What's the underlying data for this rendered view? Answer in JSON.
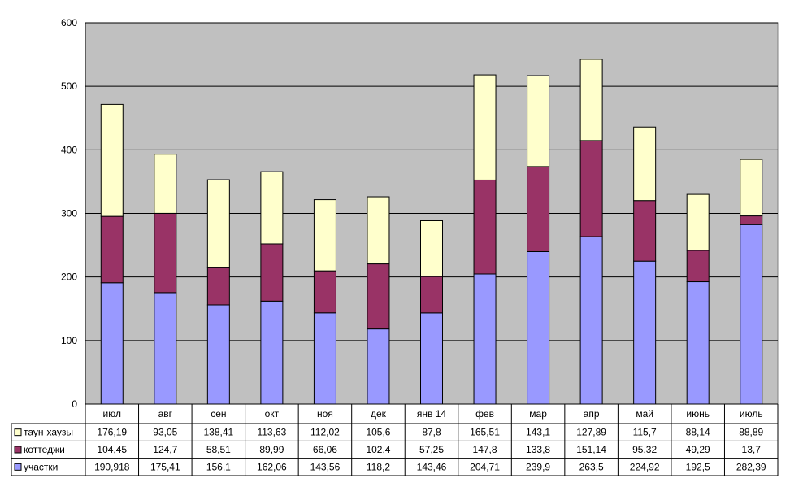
{
  "chart_data": {
    "type": "bar",
    "stacked": true,
    "title": "",
    "xlabel": "",
    "ylabel": "",
    "ylim": [
      0,
      600
    ],
    "yticks": [
      "0",
      "100",
      "200",
      "300",
      "400",
      "500",
      "600"
    ],
    "grid": true,
    "legend": "data-table-left",
    "categories": [
      "июл",
      "авг",
      "сен",
      "окт",
      "ноя",
      "дек",
      "янв 14",
      "фев",
      "мар",
      "апр",
      "май",
      "июнь",
      "июль"
    ],
    "series": [
      {
        "name": "участки",
        "color": "#9999ff",
        "values": [
          190.918,
          175.41,
          156.1,
          162.06,
          143.56,
          118.2,
          143.46,
          204.71,
          239.9,
          263.5,
          224.92,
          192.5,
          282.39
        ],
        "labels": [
          "190,918",
          "175,41",
          "156,1",
          "162,06",
          "143,56",
          "118,2",
          "143,46",
          "204,71",
          "239,9",
          "263,5",
          "224,92",
          "192,5",
          "282,39"
        ]
      },
      {
        "name": "коттеджи",
        "color": "#993366",
        "values": [
          104.45,
          124.7,
          58.51,
          89.99,
          66.06,
          102.4,
          57.25,
          147.8,
          133.8,
          151.14,
          95.32,
          49.29,
          13.7
        ],
        "labels": [
          "104,45",
          "124,7",
          "58,51",
          "89,99",
          "66,06",
          "102,4",
          "57,25",
          "147,8",
          "133,8",
          "151,14",
          "95,32",
          "49,29",
          "13,7"
        ]
      },
      {
        "name": "таун-хаузы",
        "color": "#ffffcc",
        "values": [
          176.19,
          93.05,
          138.41,
          113.63,
          112.02,
          105.6,
          87.8,
          165.51,
          143.1,
          127.89,
          115.7,
          88.14,
          88.89
        ],
        "labels": [
          "176,19",
          "93,05",
          "138,41",
          "113,63",
          "112,02",
          "105,6",
          "87,8",
          "165,51",
          "143,1",
          "127,89",
          "115,7",
          "88,14",
          "88,89"
        ]
      }
    ],
    "table_row_order": [
      "таун-хаузы",
      "коттеджи",
      "участки"
    ],
    "plot_background": "#c0c0c0"
  }
}
